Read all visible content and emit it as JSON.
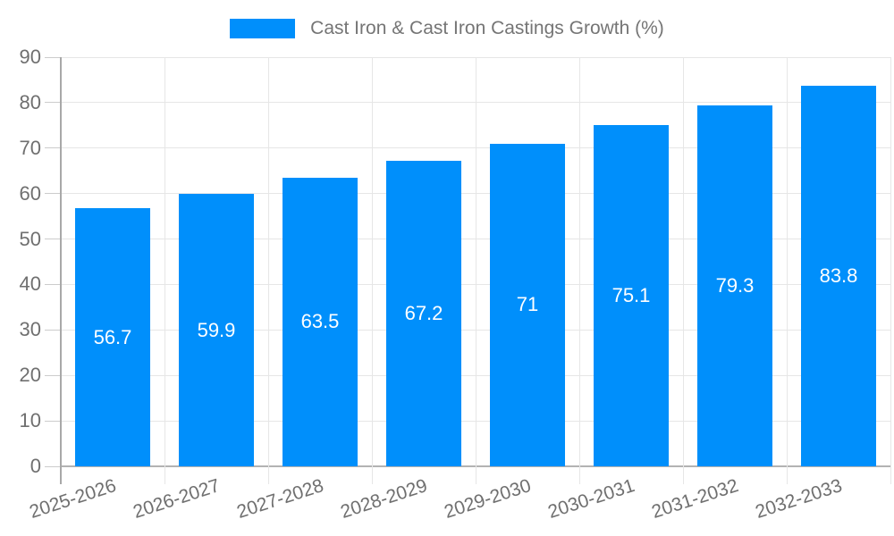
{
  "chart_data": {
    "type": "bar",
    "title": "",
    "legend": {
      "label": "Cast Iron & Cast Iron Castings Growth (%)",
      "position": "top"
    },
    "categories": [
      "2025-2026",
      "2026-2027",
      "2027-2028",
      "2028-2029",
      "2029-2030",
      "2030-2031",
      "2031-2032",
      "2032-2033"
    ],
    "values": [
      56.7,
      59.9,
      63.5,
      67.2,
      71,
      75.1,
      79.3,
      83.8
    ],
    "data_labels": [
      "56.7",
      "59.9",
      "63.5",
      "67.2",
      "71",
      "75.1",
      "79.3",
      "83.8"
    ],
    "xlabel": "",
    "ylabel": "",
    "ylim": [
      0,
      90
    ],
    "ytick_step": 10,
    "ytick_labels": [
      "0",
      "10",
      "20",
      "30",
      "40",
      "50",
      "60",
      "70",
      "80",
      "90"
    ],
    "grid": "both",
    "colors": {
      "bar": "#008FFB",
      "bar_label_text": "#ffffff",
      "axis_text": "#6f6f6f",
      "legend_text": "#757575",
      "grid_line": "#e6e6e6",
      "y_axis_line": "#a8a8a8",
      "bottom_axis_line": "#b3b3b3",
      "tick": "#cccccc",
      "background": "#ffffff"
    }
  }
}
